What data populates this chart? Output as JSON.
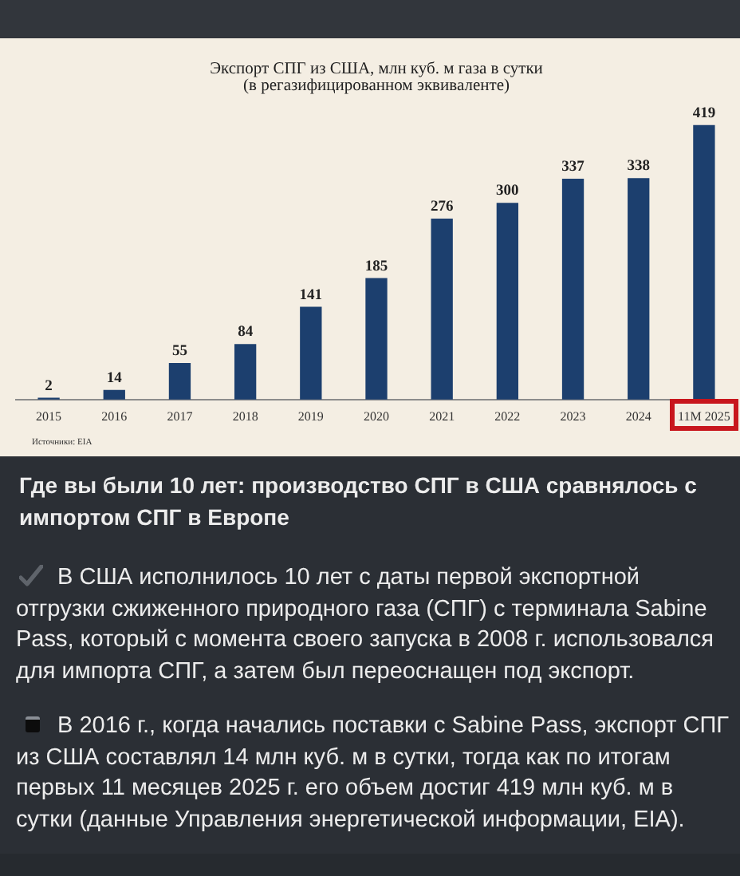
{
  "chart_data": {
    "type": "bar",
    "title": "Экспорт СПГ из США, млн куб. м газа в сутки",
    "subtitle": "(в регазифицированном эквиваленте)",
    "categories": [
      "2015",
      "2016",
      "2017",
      "2018",
      "2019",
      "2020",
      "2021",
      "2022",
      "2023",
      "2024",
      "11М 2025"
    ],
    "values": [
      2,
      14,
      55,
      84,
      141,
      185,
      276,
      300,
      337,
      338,
      419
    ],
    "color": "#1c3f6e",
    "data_labels": true,
    "annotations": [
      "Источники: EIA",
      "Где вы были 10 лет: производство СПГ в США сравнялось с импортом СПГ в Европе",
      "В США исполнилось 10 лет с даты первой экспортной отгрузки сжиженного природного газа (СПГ) с терминала Sabine Pass, который с момента своего запуска в 2008 г. использовался для импорта СПГ, а затем был переоснащен под экспорт.",
      "В 2016 г., когда начались поставки с Sabine Pass, экспорт СПГ из США составлял 14 млн куб. м в сутки, тогда как по итогам первых 11 месяцев 2025 г. его объем достиг 419 млн куб. м в сутки (данные Управления энергетической информации, EIA)."
    ]
  }
}
